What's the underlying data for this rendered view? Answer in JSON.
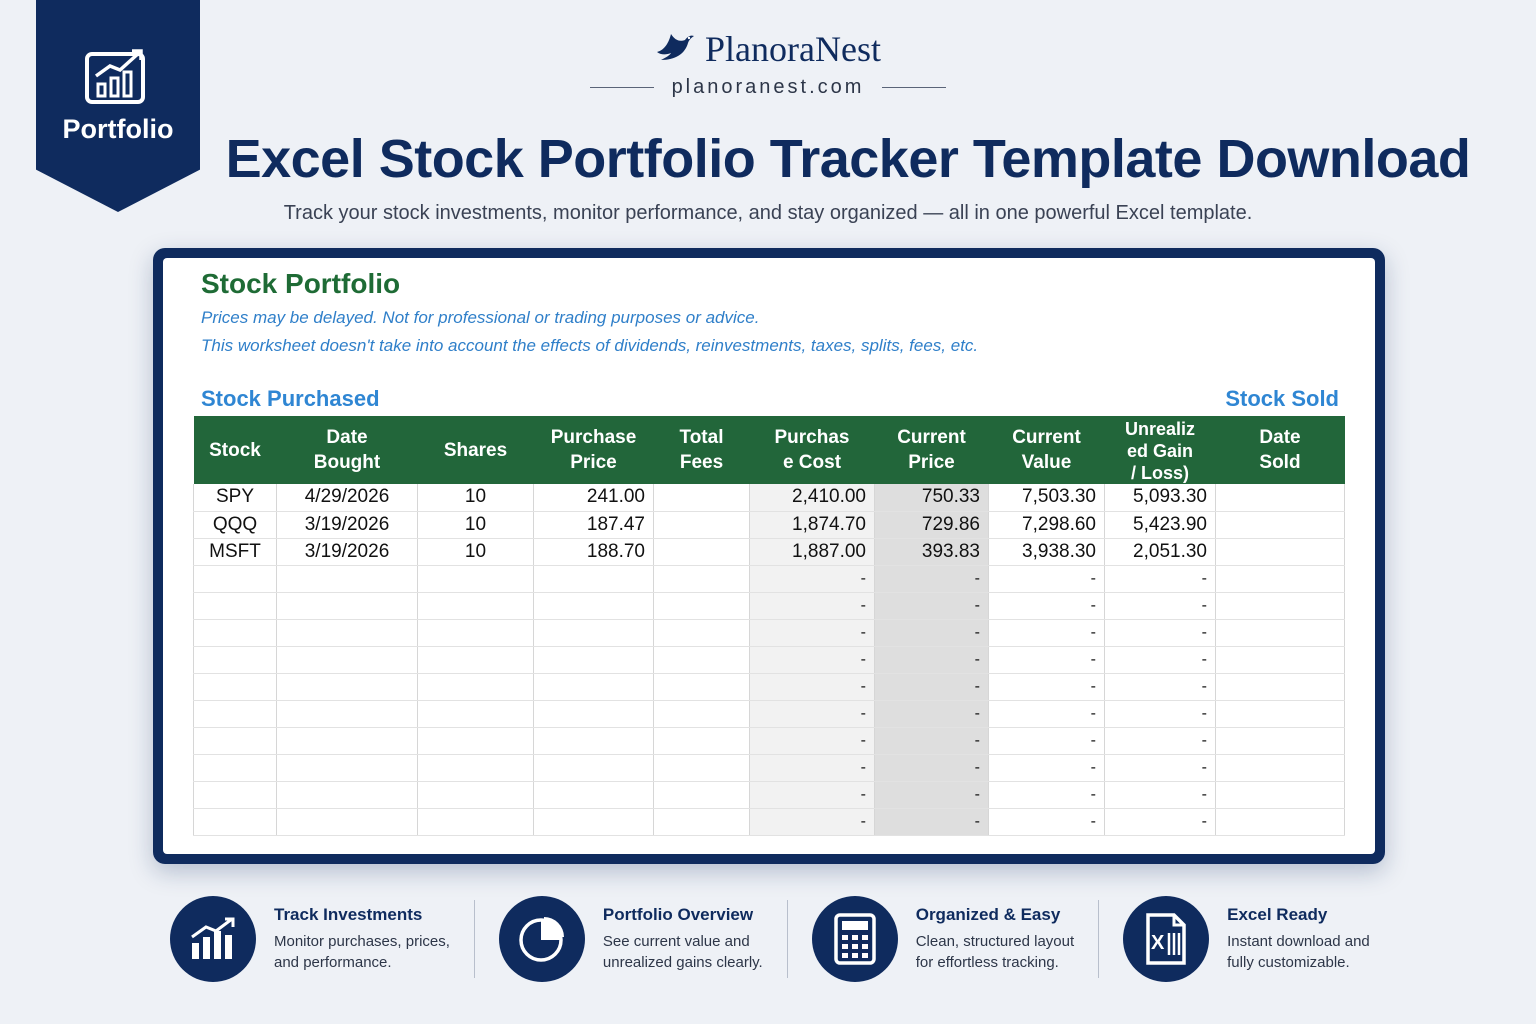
{
  "badge": {
    "label": "Portfolio",
    "icon": "growth-chart-icon"
  },
  "brand": {
    "name": "PlanoraNest",
    "url": "planoranest.com",
    "logo": "bird-logo-icon"
  },
  "header": {
    "title": "Excel Stock Portfolio Tracker Template Download",
    "subtitle": "Track your stock investments, monitor performance, and stay organized — all in one powerful Excel template."
  },
  "sheet": {
    "title": "Stock Portfolio",
    "note1": "Prices may be delayed. Not for professional or trading purposes or advice.",
    "note2": "This worksheet doesn't take into account the effects of dividends, reinvestments, taxes, splits, fees, etc.",
    "section_purchased": "Stock Purchased",
    "section_sold": "Stock Sold",
    "columns": [
      {
        "l1": "Stock",
        "l2": ""
      },
      {
        "l1": "Date",
        "l2": "Bought"
      },
      {
        "l1": "Shares",
        "l2": ""
      },
      {
        "l1": "Purchase",
        "l2": "Price"
      },
      {
        "l1": "Total",
        "l2": "Fees"
      },
      {
        "l1": "Purchas",
        "l2": "e Cost"
      },
      {
        "l1": "Current",
        "l2": "Price"
      },
      {
        "l1": "Current",
        "l2": "Value"
      },
      {
        "l1": "Unrealiz",
        "l2": "ed Gain",
        "l3": "/ Loss)"
      },
      {
        "l1": "Date",
        "l2": "Sold"
      }
    ],
    "rows": [
      {
        "stock": "SPY",
        "date": "4/29/2026",
        "shares": "10",
        "price": "241.00",
        "fees": "",
        "cost": "2,410.00",
        "cur_price": "750.33",
        "cur_value": "7,503.30",
        "gain": "5,093.30",
        "sold": ""
      },
      {
        "stock": "QQQ",
        "date": "3/19/2026",
        "shares": "10",
        "price": "187.47",
        "fees": "",
        "cost": "1,874.70",
        "cur_price": "729.86",
        "cur_value": "7,298.60",
        "gain": "5,423.90",
        "sold": ""
      },
      {
        "stock": "MSFT",
        "date": "3/19/2026",
        "shares": "10",
        "price": "188.70",
        "fees": "",
        "cost": "1,887.00",
        "cur_price": "393.83",
        "cur_value": "3,938.30",
        "gain": "2,051.30",
        "sold": ""
      },
      {
        "stock": "",
        "date": "",
        "shares": "",
        "price": "",
        "fees": "",
        "cost": "-",
        "cur_price": "-",
        "cur_value": "-",
        "gain": "-",
        "sold": ""
      },
      {
        "stock": "",
        "date": "",
        "shares": "",
        "price": "",
        "fees": "",
        "cost": "-",
        "cur_price": "-",
        "cur_value": "-",
        "gain": "-",
        "sold": ""
      },
      {
        "stock": "",
        "date": "",
        "shares": "",
        "price": "",
        "fees": "",
        "cost": "-",
        "cur_price": "-",
        "cur_value": "-",
        "gain": "-",
        "sold": ""
      },
      {
        "stock": "",
        "date": "",
        "shares": "",
        "price": "",
        "fees": "",
        "cost": "-",
        "cur_price": "-",
        "cur_value": "-",
        "gain": "-",
        "sold": ""
      },
      {
        "stock": "",
        "date": "",
        "shares": "",
        "price": "",
        "fees": "",
        "cost": "-",
        "cur_price": "-",
        "cur_value": "-",
        "gain": "-",
        "sold": ""
      },
      {
        "stock": "",
        "date": "",
        "shares": "",
        "price": "",
        "fees": "",
        "cost": "-",
        "cur_price": "-",
        "cur_value": "-",
        "gain": "-",
        "sold": ""
      },
      {
        "stock": "",
        "date": "",
        "shares": "",
        "price": "",
        "fees": "",
        "cost": "-",
        "cur_price": "-",
        "cur_value": "-",
        "gain": "-",
        "sold": ""
      },
      {
        "stock": "",
        "date": "",
        "shares": "",
        "price": "",
        "fees": "",
        "cost": "-",
        "cur_price": "-",
        "cur_value": "-",
        "gain": "-",
        "sold": ""
      },
      {
        "stock": "",
        "date": "",
        "shares": "",
        "price": "",
        "fees": "",
        "cost": "-",
        "cur_price": "-",
        "cur_value": "-",
        "gain": "-",
        "sold": ""
      },
      {
        "stock": "",
        "date": "",
        "shares": "",
        "price": "",
        "fees": "",
        "cost": "-",
        "cur_price": "-",
        "cur_value": "-",
        "gain": "-",
        "sold": ""
      }
    ]
  },
  "features": [
    {
      "icon": "bar-chart-icon",
      "title": "Track Investments",
      "line1": "Monitor purchases, prices,",
      "line2": "and performance."
    },
    {
      "icon": "pie-chart-icon",
      "title": "Portfolio Overview",
      "line1": "See current value and",
      "line2": "unrealized gains clearly."
    },
    {
      "icon": "calculator-icon",
      "title": "Organized & Easy",
      "line1": "Clean, structured layout",
      "line2": "for effortless tracking."
    },
    {
      "icon": "excel-file-icon",
      "title": "Excel Ready",
      "line1": "Instant download and",
      "line2": "fully customizable."
    }
  ],
  "colors": {
    "navy": "#0f2b5e",
    "header_green": "#22663a",
    "title_green": "#1e6b35",
    "note_blue": "#2f7fc9",
    "background": "#eef1f6"
  }
}
